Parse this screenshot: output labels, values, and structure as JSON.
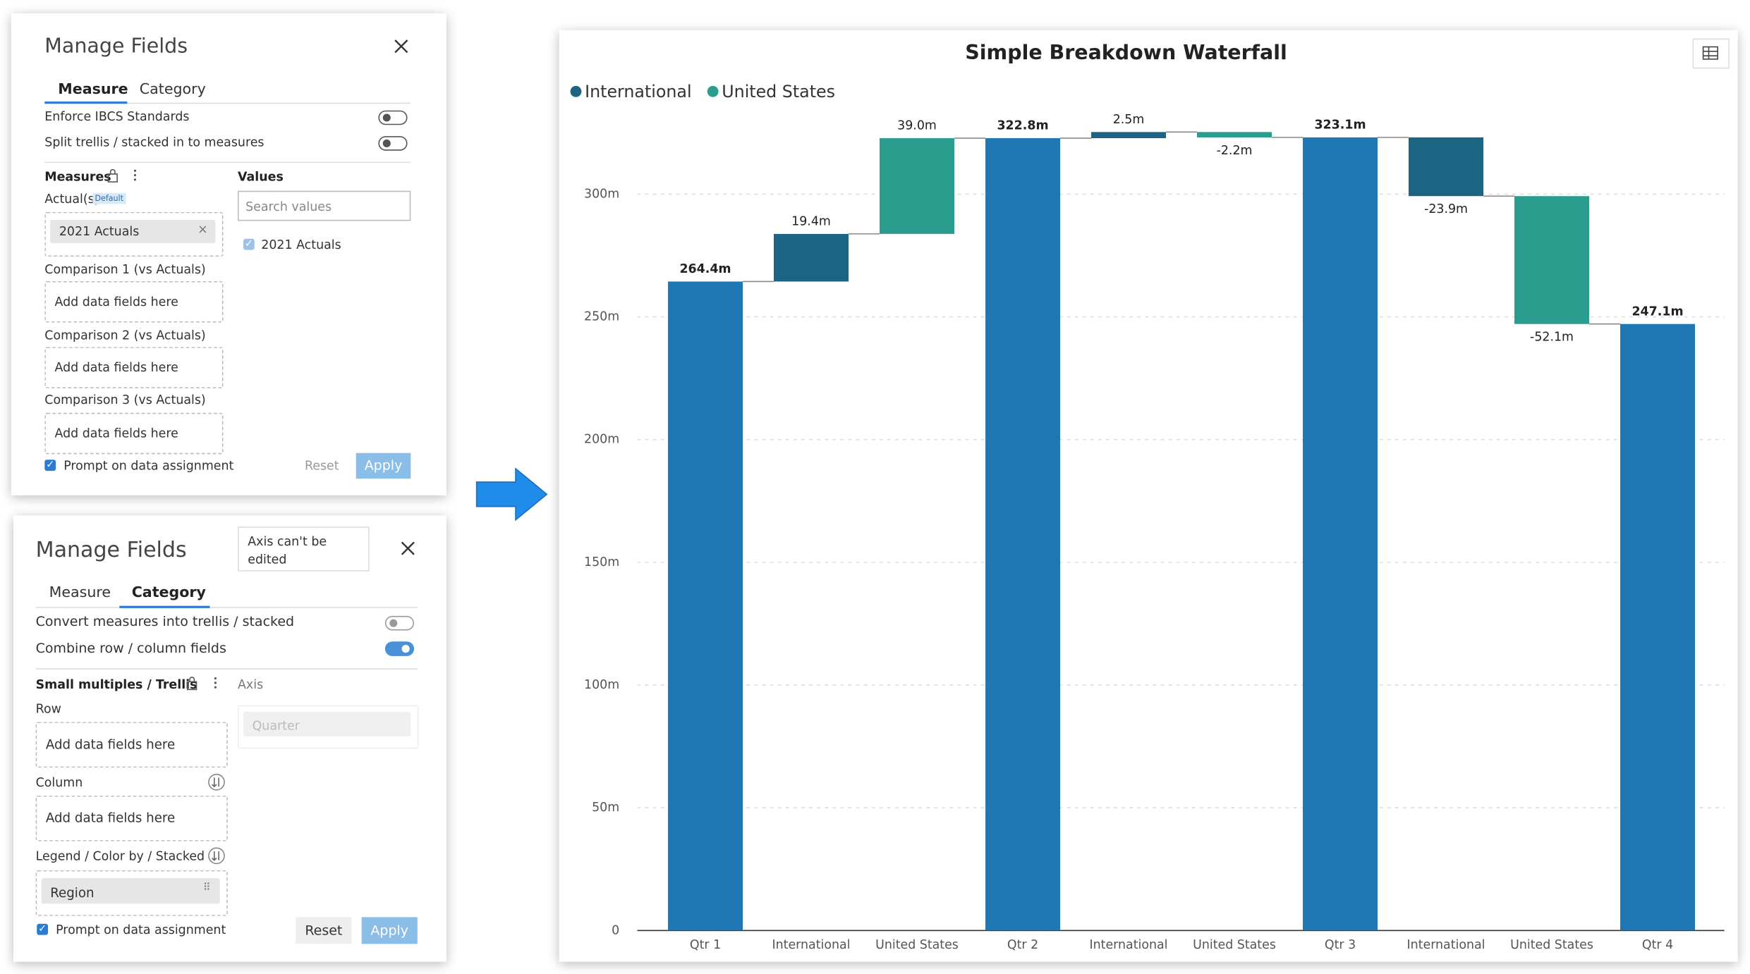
{
  "measure_panel": {
    "title": "Manage Fields",
    "tabs": [
      "Measure",
      "Category"
    ],
    "options": [
      "Enforce IBCS Standards",
      "Split trellis / stacked in to measures"
    ],
    "measures_label": "Measures",
    "actuals_label": "Actual(s)",
    "default_badge": "Default",
    "actual_field": "2021 Actuals",
    "comparisons": [
      "Comparison 1 (vs Actuals)",
      "Comparison 2 (vs Actuals)",
      "Comparison 3 (vs Actuals)"
    ],
    "placeholders": [
      "Add data fields here",
      "Add data fields here",
      "Add data fields here"
    ],
    "values_label": "Values",
    "search_placeholder": "Search values",
    "value_item": "2021 Actuals",
    "prompt": "Prompt on data assignment",
    "reset": "Reset",
    "apply": "Apply"
  },
  "category_panel": {
    "title": "Manage Fields",
    "tooltip": "Axis can't be edited",
    "tabs": [
      "Measure",
      "Category"
    ],
    "options": [
      "Convert measures into trellis / stacked",
      "Combine row / column fields"
    ],
    "section_label": "Small multiples / Trellis",
    "axis_label": "Axis",
    "axis_placeholder": "Quarter",
    "row_label": "Row",
    "row_placeholder": "Add data fields here",
    "column_label": "Column",
    "column_placeholder": "Add data fields here",
    "legend_label": "Legend / Color by / Stacked",
    "legend_field": "Region",
    "prompt": "Prompt on data assignment",
    "reset": "Reset",
    "apply": "Apply"
  },
  "chart_data": {
    "type": "waterfall",
    "title": "Simple Breakdown Waterfall",
    "categories": [
      "Qtr 1",
      "International",
      "United States",
      "Qtr 2",
      "International",
      "United States",
      "Qtr 3",
      "International",
      "United States",
      "Qtr 4"
    ],
    "values": [
      264.4,
      null,
      null,
      322.8,
      null,
      null,
      323.1,
      null,
      null,
      247.1
    ],
    "value_labels": [
      "264.4m",
      null,
      null,
      "322.8m",
      null,
      null,
      "323.1m",
      null,
      null,
      "247.1m"
    ],
    "color": "#1f77b4",
    "series": [
      {
        "name": "International",
        "color": "#1b6483",
        "values": [
          null,
          19.4,
          null,
          null,
          2.5,
          null,
          null,
          -23.9,
          null,
          null
        ],
        "value_labels": [
          null,
          "19.4m",
          null,
          null,
          "2.5m",
          null,
          null,
          "-23.9m",
          null,
          null
        ]
      },
      {
        "name": "United States",
        "color": "#2a9d8f",
        "values": [
          null,
          null,
          39.0,
          null,
          null,
          -2.2,
          null,
          null,
          -52.1,
          null
        ],
        "value_labels": [
          null,
          null,
          "39.0m",
          null,
          null,
          "-2.2m",
          null,
          null,
          "-52.1m",
          null
        ]
      }
    ],
    "ylim": [
      0,
      300
    ],
    "yticks": [
      0,
      {
        "value": 50,
        "label": "50m"
      },
      {
        "value": 100,
        "label": "100m"
      },
      {
        "value": 150,
        "label": "150m"
      },
      {
        "value": 200,
        "label": "200m"
      },
      {
        "value": 250,
        "label": "250m"
      },
      {
        "value": 300,
        "label": "300m"
      }
    ],
    "grid": true,
    "legend": "top-left"
  }
}
